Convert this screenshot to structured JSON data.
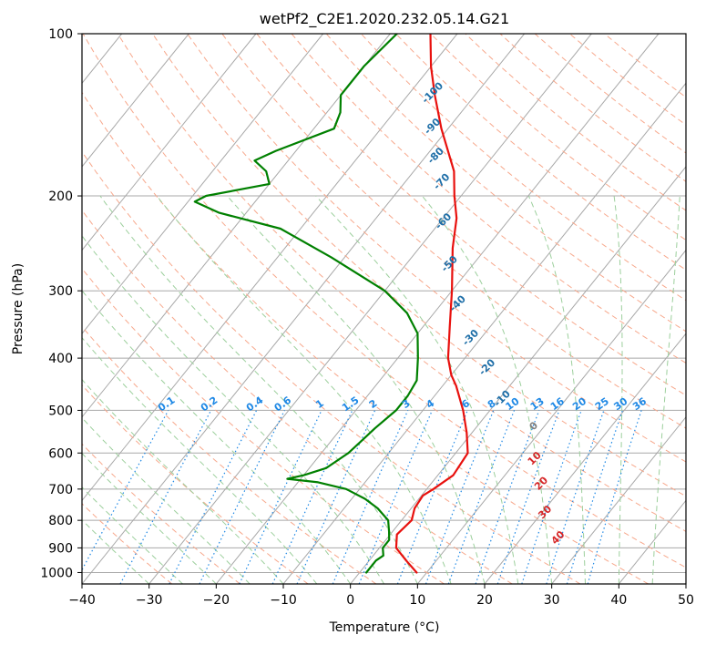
{
  "chart_data": {
    "type": "skew-t",
    "title": "wetPf2_C2E1.2020.232.05.14.G21",
    "xlabel": "Temperature (°C)",
    "ylabel": "Pressure (hPa)",
    "xlim": [
      -40,
      50
    ],
    "ylim": [
      1050,
      100
    ],
    "log_pressure_axis": true,
    "grid": true,
    "x_ticks": [
      -40,
      -30,
      -20,
      -10,
      0,
      10,
      20,
      30,
      40,
      50
    ],
    "y_ticks": [
      100,
      200,
      300,
      400,
      500,
      600,
      700,
      800,
      900,
      1000
    ],
    "series": [
      {
        "kind": "temperature",
        "color": "#e8110e",
        "points": [
          [
            1000,
            8.5
          ],
          [
            950,
            5.5
          ],
          [
            900,
            2.5
          ],
          [
            850,
            1.0
          ],
          [
            800,
            1.5
          ],
          [
            760,
            0.5
          ],
          [
            720,
            0.2
          ],
          [
            700,
            1.0
          ],
          [
            660,
            2.3
          ],
          [
            600,
            1.8
          ],
          [
            550,
            -0.8
          ],
          [
            500,
            -4.0
          ],
          [
            450,
            -8.0
          ],
          [
            430,
            -10.0
          ],
          [
            400,
            -12.5
          ],
          [
            350,
            -16.0
          ],
          [
            300,
            -20.0
          ],
          [
            250,
            -25.0
          ],
          [
            220,
            -28.0
          ],
          [
            200,
            -31.0
          ],
          [
            180,
            -34.0
          ],
          [
            150,
            -41.0
          ],
          [
            130,
            -46.0
          ],
          [
            115,
            -50.0
          ],
          [
            100,
            -54.0
          ]
        ]
      },
      {
        "kind": "dewpoint",
        "color": "#008000",
        "points": [
          [
            1000,
            1.0
          ],
          [
            950,
            1.0
          ],
          [
            930,
            1.5
          ],
          [
            900,
            0.5
          ],
          [
            870,
            0.5
          ],
          [
            840,
            -0.5
          ],
          [
            800,
            -2.0
          ],
          [
            760,
            -5.0
          ],
          [
            730,
            -8.0
          ],
          [
            700,
            -12.0
          ],
          [
            680,
            -17.0
          ],
          [
            670,
            -22.0
          ],
          [
            660,
            -20.0
          ],
          [
            640,
            -17.5
          ],
          [
            600,
            -16.0
          ],
          [
            570,
            -15.5
          ],
          [
            540,
            -15.0
          ],
          [
            500,
            -14.0
          ],
          [
            470,
            -14.0
          ],
          [
            440,
            -14.5
          ],
          [
            400,
            -17.0
          ],
          [
            360,
            -20.0
          ],
          [
            330,
            -24.0
          ],
          [
            300,
            -30.0
          ],
          [
            260,
            -42.0
          ],
          [
            230,
            -53.0
          ],
          [
            215,
            -64.0
          ],
          [
            205,
            -69.0
          ],
          [
            200,
            -68.0
          ],
          [
            190,
            -60.0
          ],
          [
            180,
            -62.0
          ],
          [
            172,
            -65.0
          ],
          [
            165,
            -63.0
          ],
          [
            150,
            -57.0
          ],
          [
            140,
            -58.0
          ],
          [
            130,
            -60.0
          ],
          [
            115,
            -60.0
          ],
          [
            100,
            -59.0
          ]
        ]
      }
    ],
    "dry_adiabat_labels": [
      "-100",
      "-90",
      "-80",
      "-70",
      "-60",
      "-50",
      "-40",
      "-30",
      "-20",
      "-10",
      "0",
      "10",
      "20",
      "30",
      "40"
    ],
    "mixing_ratio_labels": [
      "0.1",
      "0.2",
      "0.4",
      "0.6",
      "1",
      "1.5",
      "2",
      "3",
      "4",
      "6",
      "8",
      "10",
      "13",
      "16",
      "20",
      "25",
      "30",
      "36"
    ],
    "colors": {
      "isotherm": "#a8a8a8",
      "dry_adiabat": "#f7a88c",
      "moist_adiabat": "#9ccf9c",
      "mixing_ratio": "#1e88e5",
      "dry_label": "#1f6fa8",
      "moist_label_warm": "#d62728",
      "moist_label_zero": "#808080"
    }
  }
}
